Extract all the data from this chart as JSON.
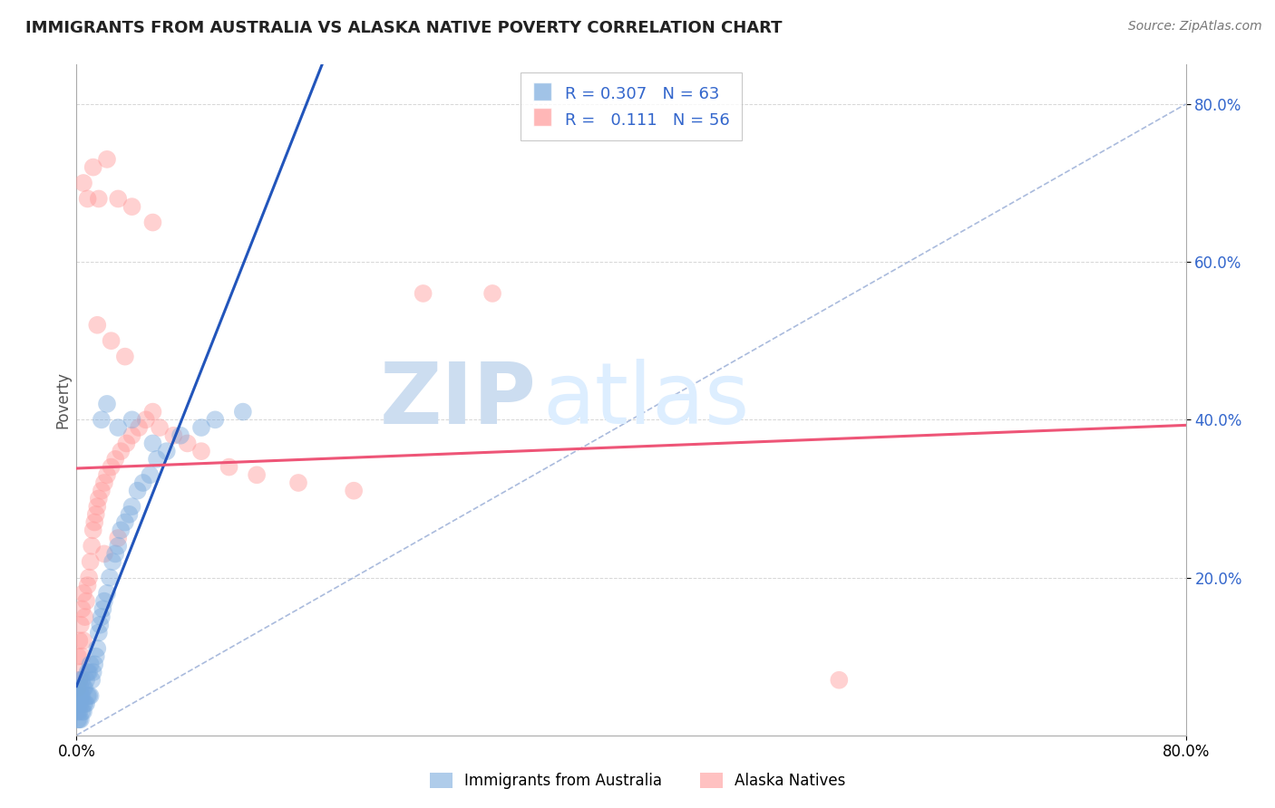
{
  "title": "IMMIGRANTS FROM AUSTRALIA VS ALASKA NATIVE POVERTY CORRELATION CHART",
  "source": "Source: ZipAtlas.com",
  "xlabel": "",
  "ylabel": "Poverty",
  "xlim": [
    0.0,
    0.8
  ],
  "ylim": [
    0.0,
    0.85
  ],
  "grid_color": "#cccccc",
  "background_color": "#ffffff",
  "blue_color": "#7aaadd",
  "pink_color": "#ff9999",
  "blue_line_color": "#2255bb",
  "pink_line_color": "#ee5577",
  "ref_line_color": "#aabbdd",
  "legend_label_blue": "Immigrants from Australia",
  "legend_label_pink": "Alaska Natives",
  "R_blue": 0.307,
  "N_blue": 63,
  "R_pink": 0.111,
  "N_pink": 56,
  "blue_scatter_x": [
    0.001,
    0.001,
    0.001,
    0.001,
    0.001,
    0.002,
    0.002,
    0.002,
    0.002,
    0.002,
    0.003,
    0.003,
    0.003,
    0.003,
    0.004,
    0.004,
    0.004,
    0.005,
    0.005,
    0.005,
    0.006,
    0.006,
    0.007,
    0.007,
    0.008,
    0.008,
    0.009,
    0.009,
    0.01,
    0.01,
    0.011,
    0.012,
    0.013,
    0.014,
    0.015,
    0.016,
    0.017,
    0.018,
    0.019,
    0.02,
    0.022,
    0.024,
    0.026,
    0.028,
    0.03,
    0.032,
    0.035,
    0.038,
    0.04,
    0.044,
    0.048,
    0.053,
    0.058,
    0.065,
    0.075,
    0.09,
    0.1,
    0.12,
    0.04,
    0.055,
    0.018,
    0.022,
    0.03
  ],
  "blue_scatter_y": [
    0.02,
    0.03,
    0.04,
    0.05,
    0.06,
    0.02,
    0.03,
    0.04,
    0.05,
    0.07,
    0.02,
    0.04,
    0.05,
    0.06,
    0.03,
    0.05,
    0.07,
    0.03,
    0.04,
    0.06,
    0.04,
    0.06,
    0.04,
    0.07,
    0.05,
    0.08,
    0.05,
    0.08,
    0.05,
    0.09,
    0.07,
    0.08,
    0.09,
    0.1,
    0.11,
    0.13,
    0.14,
    0.15,
    0.16,
    0.17,
    0.18,
    0.2,
    0.22,
    0.23,
    0.24,
    0.26,
    0.27,
    0.28,
    0.29,
    0.31,
    0.32,
    0.33,
    0.35,
    0.36,
    0.38,
    0.39,
    0.4,
    0.41,
    0.4,
    0.37,
    0.4,
    0.42,
    0.39
  ],
  "pink_scatter_x": [
    0.001,
    0.001,
    0.002,
    0.002,
    0.003,
    0.003,
    0.004,
    0.004,
    0.005,
    0.005,
    0.006,
    0.007,
    0.008,
    0.009,
    0.01,
    0.011,
    0.012,
    0.013,
    0.014,
    0.015,
    0.016,
    0.018,
    0.02,
    0.022,
    0.025,
    0.028,
    0.032,
    0.036,
    0.04,
    0.045,
    0.05,
    0.055,
    0.06,
    0.07,
    0.08,
    0.09,
    0.11,
    0.13,
    0.16,
    0.2,
    0.25,
    0.3,
    0.005,
    0.008,
    0.012,
    0.016,
    0.022,
    0.03,
    0.04,
    0.055,
    0.035,
    0.025,
    0.015,
    0.55,
    0.02,
    0.03
  ],
  "pink_scatter_y": [
    0.06,
    0.1,
    0.07,
    0.12,
    0.08,
    0.14,
    0.1,
    0.16,
    0.12,
    0.18,
    0.15,
    0.17,
    0.19,
    0.2,
    0.22,
    0.24,
    0.26,
    0.27,
    0.28,
    0.29,
    0.3,
    0.31,
    0.32,
    0.33,
    0.34,
    0.35,
    0.36,
    0.37,
    0.38,
    0.39,
    0.4,
    0.41,
    0.39,
    0.38,
    0.37,
    0.36,
    0.34,
    0.33,
    0.32,
    0.31,
    0.56,
    0.56,
    0.7,
    0.68,
    0.72,
    0.68,
    0.73,
    0.68,
    0.67,
    0.65,
    0.48,
    0.5,
    0.52,
    0.07,
    0.23,
    0.25
  ],
  "watermark_zip": "ZIP",
  "watermark_atlas": "atlas",
  "watermark_color": "#ddeeff"
}
